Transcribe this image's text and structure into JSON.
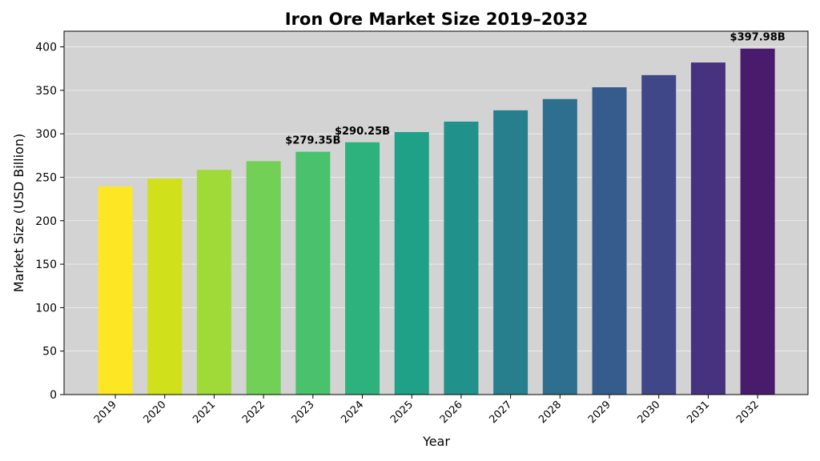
{
  "chart_data": {
    "type": "bar",
    "title": "Iron Ore Market Size 2019–2032",
    "xlabel": "Year",
    "ylabel": "Market Size (USD Billion)",
    "ylim": [
      0,
      418
    ],
    "yticks": [
      0,
      50,
      100,
      150,
      200,
      250,
      300,
      350,
      400
    ],
    "grid": true,
    "background": "#d3d3d3",
    "categories": [
      "2019",
      "2020",
      "2021",
      "2022",
      "2023",
      "2024",
      "2025",
      "2026",
      "2027",
      "2028",
      "2029",
      "2030",
      "2031",
      "2032"
    ],
    "values": [
      239.5,
      248.5,
      258.5,
      268.5,
      279.35,
      290.25,
      302,
      314,
      327,
      340,
      353.5,
      367.5,
      382,
      397.98
    ],
    "colors": [
      "#fde725",
      "#d0e11c",
      "#a0da39",
      "#73d056",
      "#4ac16d",
      "#2db27d",
      "#1fa187",
      "#21918c",
      "#277f8e",
      "#2e6e8e",
      "#365c8d",
      "#3f4788",
      "#46327e",
      "#481b6d"
    ],
    "annotations": [
      {
        "index": 4,
        "text": "$279.35B"
      },
      {
        "index": 5,
        "text": "$290.25B"
      },
      {
        "index": 13,
        "text": "$397.98B"
      }
    ]
  }
}
